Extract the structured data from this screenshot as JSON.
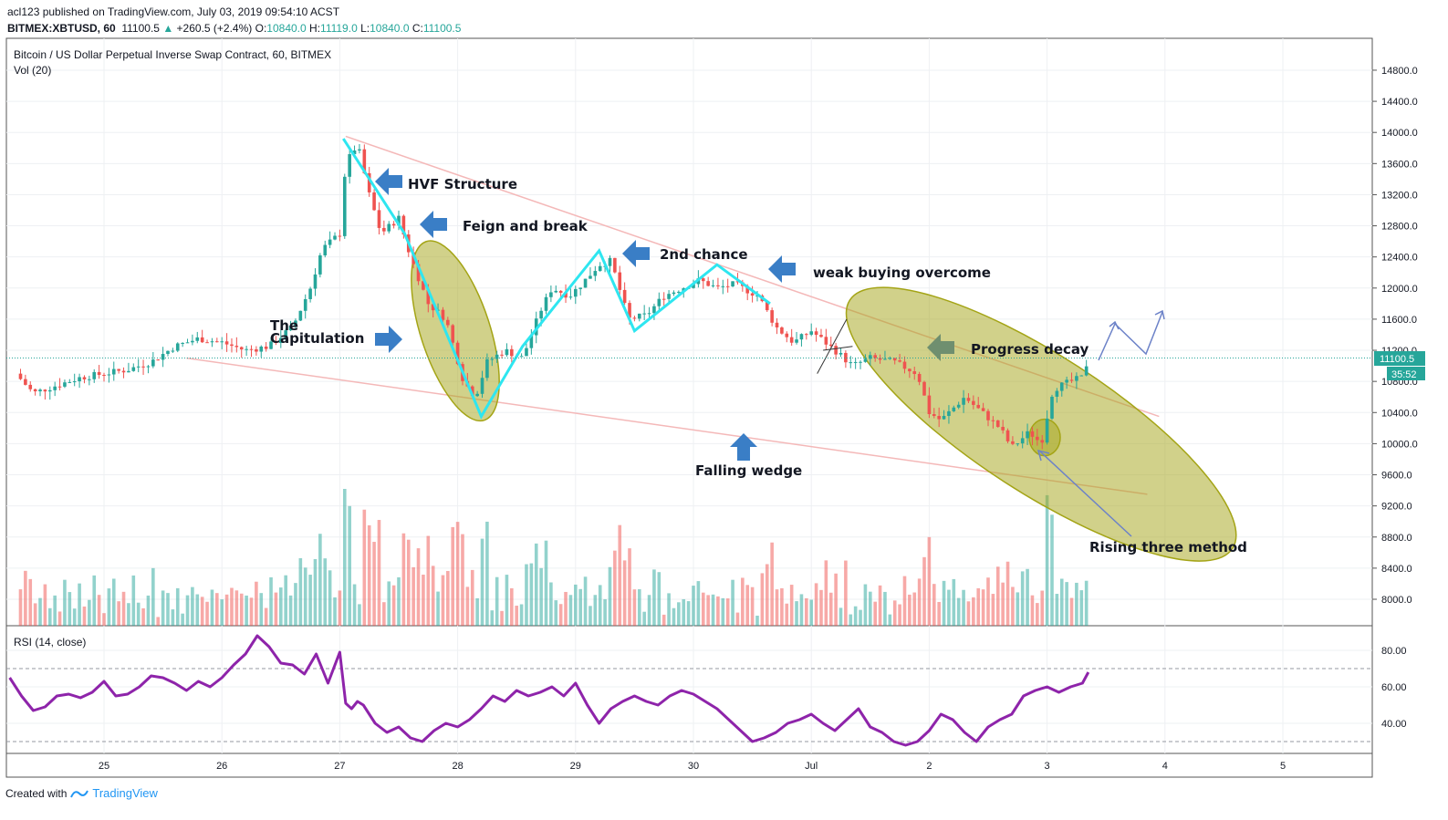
{
  "header": {
    "publish_line": "acl123 published on TradingView.com, July 03, 2019 09:54:10 ACST",
    "symbol": "BITMEX:XBTUSD, 60",
    "last": "11100.5",
    "change": "+260.5 (+2.4%)",
    "o_label": "O:",
    "o": "10840.0",
    "h_label": "H:",
    "h": "11119.0",
    "l_label": "L:",
    "l": "10840.0",
    "c_label": "C:",
    "c": "11100.5"
  },
  "pane": {
    "title": "Bitcoin / US Dollar Perpetual Inverse Swap Contract, 60, BITMEX",
    "vol_label": "Vol (20)",
    "rsi_label": "RSI (14, close)"
  },
  "price_badge": {
    "value": "11100.5",
    "countdown": "35:52",
    "color": "#26a69a"
  },
  "footer": {
    "created_with": "Created with",
    "brand": "TradingView"
  },
  "colors": {
    "up": "#26a69a",
    "down": "#ef5350",
    "rsi": "#8e24aa",
    "zigzag": "#2ee6f0",
    "wedge": "#f4b8b8",
    "ellipse": "#a4a416",
    "arrow": "#3a7ec6"
  },
  "annotations": {
    "hvf": "HVF Structure",
    "feign": "Feign and break",
    "second_chance": "2nd chance",
    "weak_buying": "weak buying overcome",
    "capitulation_1": "The",
    "capitulation_2": "Capitulation",
    "progress_decay": "Progress decay",
    "falling_wedge": "Falling wedge",
    "rising_three": "Rising three method"
  },
  "chart_data": [
    {
      "type": "candlestick",
      "title": "Bitcoin / US Dollar Perpetual Inverse Swap Contract, 60, BITMEX",
      "x_ticks": [
        "25",
        "26",
        "27",
        "28",
        "29",
        "30",
        "Jul",
        "2",
        "3",
        "4",
        "5"
      ],
      "y_ticks": [
        8000.0,
        8400.0,
        8800.0,
        9200.0,
        9600.0,
        10000.0,
        10400.0,
        10800.0,
        11200.0,
        11600.0,
        12000.0,
        12400.0,
        12800.0,
        13200.0,
        13600.0,
        14000.0,
        14400.0,
        14800.0
      ],
      "ylim": [
        7640,
        14960
      ],
      "price_path": [
        [
          -0.75,
          10900
        ],
        [
          -0.6,
          10650
        ],
        [
          -0.4,
          10750
        ],
        [
          -0.2,
          10850
        ],
        [
          0,
          10900
        ],
        [
          0.2,
          10950
        ],
        [
          0.4,
          11050
        ],
        [
          0.6,
          11250
        ],
        [
          0.8,
          11350
        ],
        [
          1.0,
          11300
        ],
        [
          1.2,
          11200
        ],
        [
          1.4,
          11250
        ],
        [
          1.6,
          11500
        ],
        [
          1.75,
          12000
        ],
        [
          1.85,
          12500
        ],
        [
          2.0,
          12700
        ],
        [
          2.05,
          13600
        ],
        [
          2.15,
          13850
        ],
        [
          2.25,
          13200
        ],
        [
          2.35,
          12700
        ],
        [
          2.5,
          12900
        ],
        [
          2.6,
          12400
        ],
        [
          2.75,
          11800
        ],
        [
          2.9,
          11600
        ],
        [
          3.05,
          10800
        ],
        [
          3.15,
          10600
        ],
        [
          3.25,
          11050
        ],
        [
          3.4,
          11200
        ],
        [
          3.55,
          11100
        ],
        [
          3.7,
          11700
        ],
        [
          3.8,
          12000
        ],
        [
          3.95,
          11900
        ],
        [
          4.05,
          12050
        ],
        [
          4.2,
          12300
        ],
        [
          4.3,
          12350
        ],
        [
          4.45,
          11600
        ],
        [
          4.6,
          11650
        ],
        [
          4.75,
          11900
        ],
        [
          4.9,
          12000
        ],
        [
          5.05,
          12100
        ],
        [
          5.2,
          12000
        ],
        [
          5.35,
          12050
        ],
        [
          5.55,
          11900
        ],
        [
          5.7,
          11500
        ],
        [
          5.85,
          11300
        ],
        [
          6.0,
          11450
        ],
        [
          6.2,
          11200
        ],
        [
          6.35,
          11000
        ],
        [
          6.5,
          11100
        ],
        [
          6.7,
          11050
        ],
        [
          6.9,
          10900
        ],
        [
          7.0,
          10400
        ],
        [
          7.1,
          10300
        ],
        [
          7.3,
          10600
        ],
        [
          7.45,
          10400
        ],
        [
          7.6,
          10200
        ],
        [
          7.7,
          9950
        ],
        [
          7.85,
          10150
        ],
        [
          7.95,
          10000
        ],
        [
          8.05,
          10700
        ],
        [
          8.2,
          10800
        ],
        [
          8.3,
          10850
        ],
        [
          8.35,
          11100
        ]
      ]
    },
    {
      "type": "bar",
      "title": "Vol (20)",
      "colors": [
        "#26a69a",
        "#ef5350"
      ]
    },
    {
      "type": "line",
      "title": "RSI (14, close)",
      "y_ticks": [
        40.0,
        60.0,
        80.0
      ],
      "ylim": [
        20,
        90
      ],
      "bands": [
        70,
        30
      ],
      "x": [
        -0.8,
        -0.7,
        -0.6,
        -0.5,
        -0.4,
        -0.3,
        -0.2,
        -0.1,
        0.0,
        0.1,
        0.2,
        0.3,
        0.4,
        0.5,
        0.6,
        0.7,
        0.8,
        0.9,
        1.0,
        1.1,
        1.2,
        1.3,
        1.4,
        1.5,
        1.6,
        1.7,
        1.8,
        1.9,
        2.0,
        2.05,
        2.1,
        2.15,
        2.2,
        2.3,
        2.4,
        2.5,
        2.6,
        2.7,
        2.8,
        2.9,
        3.0,
        3.1,
        3.2,
        3.3,
        3.4,
        3.5,
        3.6,
        3.7,
        3.8,
        3.9,
        4.0,
        4.1,
        4.2,
        4.3,
        4.4,
        4.5,
        4.6,
        4.7,
        4.8,
        4.9,
        5.0,
        5.1,
        5.2,
        5.3,
        5.4,
        5.5,
        5.6,
        5.7,
        5.8,
        5.9,
        6.0,
        6.1,
        6.2,
        6.3,
        6.4,
        6.5,
        6.6,
        6.7,
        6.8,
        6.9,
        7.0,
        7.1,
        7.2,
        7.3,
        7.4,
        7.5,
        7.6,
        7.7,
        7.8,
        7.9,
        8.0,
        8.1,
        8.2,
        8.3,
        8.35
      ],
      "values": [
        65,
        55,
        47,
        49,
        55,
        56,
        54,
        57,
        63,
        55,
        56,
        60,
        66,
        65,
        62,
        58,
        63,
        60,
        65,
        72,
        78,
        88,
        82,
        73,
        72,
        67,
        78,
        62,
        79,
        51,
        48,
        52,
        50,
        40,
        35,
        38,
        32,
        30,
        36,
        40,
        38,
        42,
        48,
        55,
        52,
        58,
        55,
        57,
        60,
        55,
        62,
        50,
        40,
        48,
        52,
        55,
        52,
        50,
        55,
        58,
        56,
        52,
        48,
        42,
        36,
        30,
        32,
        35,
        40,
        42,
        45,
        40,
        36,
        42,
        48,
        38,
        35,
        30,
        28,
        30,
        36,
        45,
        42,
        35,
        30,
        38,
        42,
        45,
        55,
        58,
        60,
        57,
        60,
        62,
        68
      ]
    }
  ]
}
